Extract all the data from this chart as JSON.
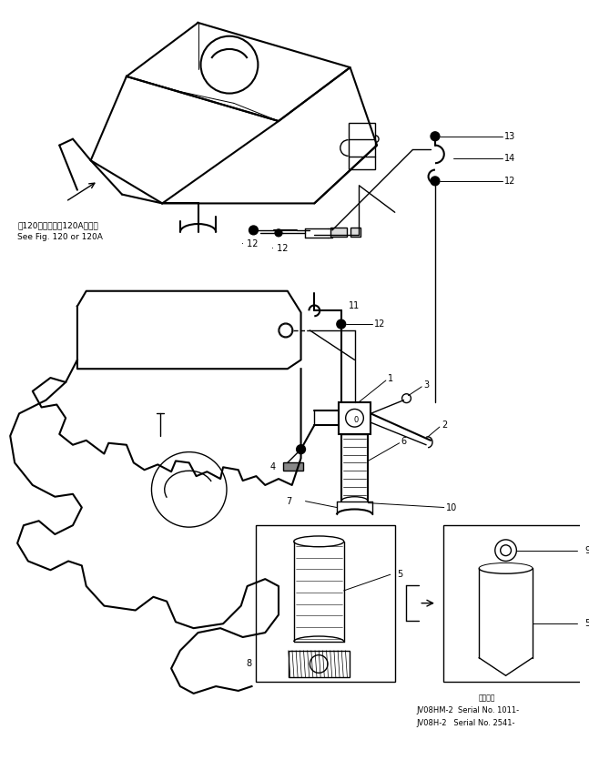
{
  "bg_color": "#ffffff",
  "line_color": "#000000",
  "figsize": [
    6.47,
    8.35
  ],
  "dpi": 100,
  "note_text_jp": "第120図または第120A図参照",
  "note_text_en": "See Fig. 120 or 120A",
  "serial_text1": "JV08HM-2  Serial No. 1011-",
  "serial_text2": "JV08H-2   Serial No. 2541-",
  "serial_label_jp": "適用当記"
}
